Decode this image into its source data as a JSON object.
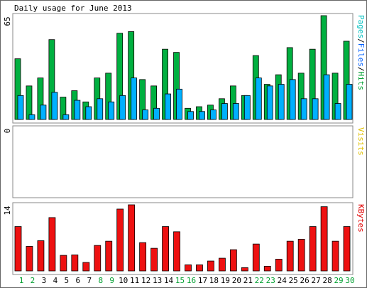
{
  "chart_data": [
    {
      "type": "bar",
      "title": "Daily usage for June 2013",
      "categories": [
        "1",
        "2",
        "3",
        "4",
        "5",
        "6",
        "7",
        "8",
        "9",
        "10",
        "11",
        "12",
        "13",
        "14",
        "15",
        "16",
        "17",
        "18",
        "19",
        "20",
        "21",
        "22",
        "23",
        "24",
        "25",
        "26",
        "27",
        "28",
        "29",
        "30"
      ],
      "category_colors": [
        "#00a030",
        "#00a030",
        "#000000",
        "#000000",
        "#000000",
        "#000000",
        "#000000",
        "#00a030",
        "#00a030",
        "#000000",
        "#000000",
        "#000000",
        "#000000",
        "#000000",
        "#00a030",
        "#00a030",
        "#000000",
        "#000000",
        "#000000",
        "#000000",
        "#000000",
        "#00a030",
        "#00a030",
        "#000000",
        "#000000",
        "#000000",
        "#000000",
        "#000000",
        "#00a030",
        "#00a030"
      ],
      "legend": [
        {
          "text": "Pages",
          "color": "#00c0c0"
        },
        {
          "text": "Files",
          "color": "#0060ff"
        },
        {
          "text": "Hits",
          "color": "#00a030"
        }
      ],
      "legend_separator": "/",
      "series": [
        {
          "name": "Hits",
          "color": "#00b040",
          "values": [
            38,
            21,
            26,
            50,
            14,
            18,
            11,
            26,
            29,
            54,
            55,
            25,
            21,
            44,
            42,
            7,
            8,
            9,
            13,
            21,
            15,
            40,
            22,
            28,
            45,
            29,
            44,
            65,
            29,
            49
          ]
        },
        {
          "name": "Files",
          "color": "#00b0ff",
          "values": [
            15,
            3,
            9,
            17,
            3,
            12,
            8,
            13,
            11,
            15,
            26,
            6,
            7,
            16,
            19,
            5,
            5,
            6,
            10,
            10,
            15,
            26,
            21,
            22,
            25,
            13,
            13,
            28,
            10,
            22
          ]
        }
      ],
      "ylim": [
        0,
        65
      ],
      "yticks": [
        65
      ]
    },
    {
      "type": "bar",
      "legend": [
        {
          "text": "Visits",
          "color": "#e0c000"
        }
      ],
      "series": [
        {
          "name": "Visits",
          "color": "#e0c000",
          "values": [
            0,
            0,
            0,
            0,
            0,
            0,
            0,
            0,
            0,
            0,
            0,
            0,
            0,
            0,
            0,
            0,
            0,
            0,
            0,
            0,
            0,
            0,
            0,
            0,
            0,
            0,
            0,
            0,
            0,
            0
          ]
        }
      ],
      "ylim": [
        0,
        1
      ],
      "yticks": [
        0
      ]
    },
    {
      "type": "bar",
      "legend": [
        {
          "text": "KBytes",
          "color": "#e00000"
        }
      ],
      "series": [
        {
          "name": "KBytes",
          "color": "#ee1111",
          "values": [
            9.4,
            5.2,
            6.4,
            11.3,
            3.3,
            3.4,
            1.8,
            5.4,
            6.3,
            13.1,
            14,
            6,
            4.8,
            9.4,
            8.3,
            1.3,
            1.3,
            2.1,
            2.7,
            4.5,
            0.7,
            5.7,
            1,
            2.5,
            6.3,
            6.7,
            9.4,
            13.6,
            6.3,
            9.4
          ]
        }
      ],
      "ylim": [
        0,
        14
      ],
      "yticks": [
        14
      ]
    }
  ]
}
